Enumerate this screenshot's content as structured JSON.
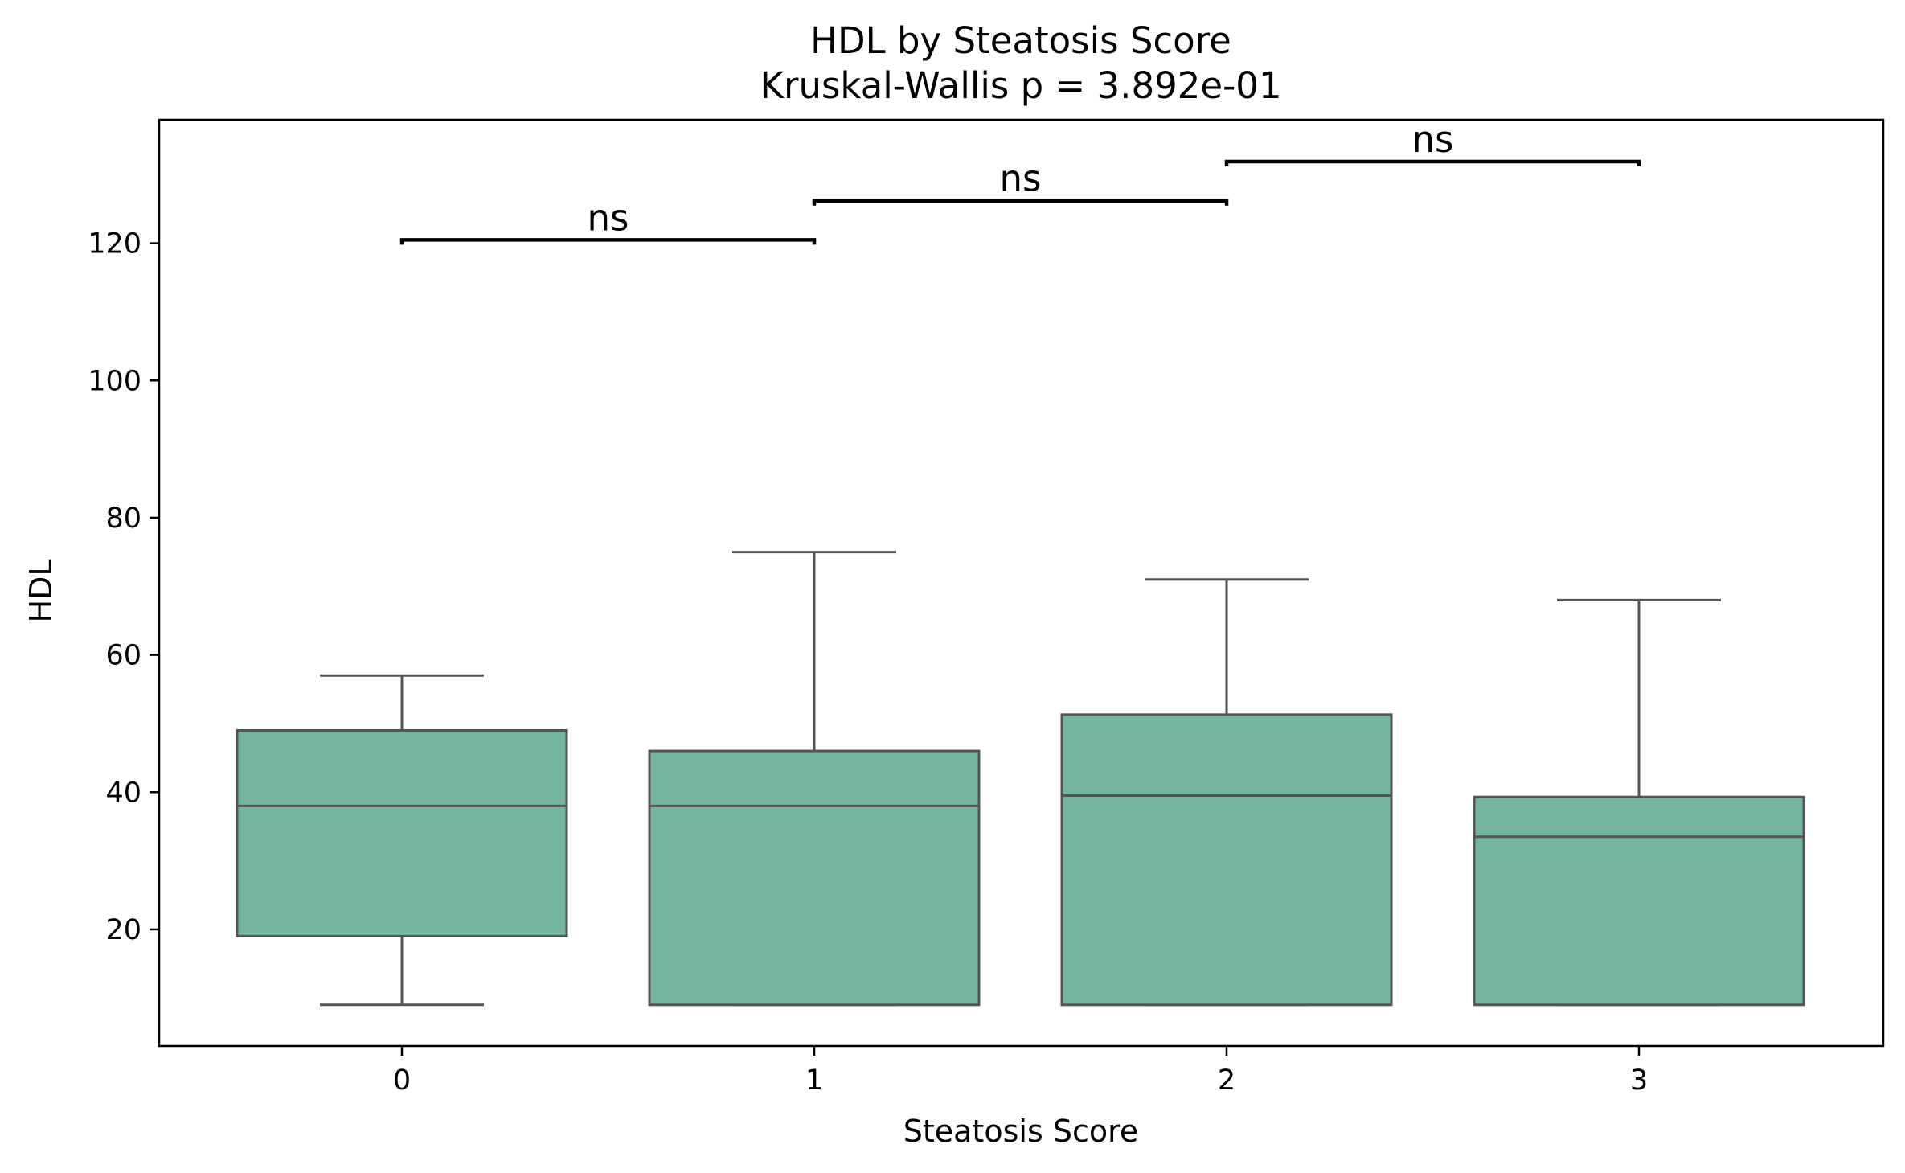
{
  "chart_data": {
    "type": "box",
    "title": "HDL by Steatosis Score",
    "subtitle": "Kruskal-Wallis p = 3.892e-01",
    "xlabel": "Steatosis Score",
    "ylabel": "HDL",
    "categories": [
      "0",
      "1",
      "2",
      "3"
    ],
    "ylim": [
      3,
      138
    ],
    "yticks": [
      20,
      40,
      60,
      80,
      100,
      120
    ],
    "grid": false,
    "box_color": "#74b5a1",
    "line_color": "#555555",
    "boxes": [
      {
        "category": "0",
        "whisker_low": 9,
        "q1": 19,
        "median": 38,
        "q3": 49,
        "whisker_high": 57
      },
      {
        "category": "1",
        "whisker_low": 9,
        "q1": 9,
        "median": 38,
        "q3": 46,
        "whisker_high": 75
      },
      {
        "category": "2",
        "whisker_low": 9,
        "q1": 9,
        "median": 39.5,
        "q3": 51.3,
        "whisker_high": 71
      },
      {
        "category": "3",
        "whisker_low": 9,
        "q1": 9,
        "median": 33.5,
        "q3": 39.3,
        "whisker_high": 68
      }
    ],
    "annotations": [
      {
        "from": "0",
        "to": "1",
        "y": 120.5,
        "label": "ns"
      },
      {
        "from": "1",
        "to": "2",
        "y": 126.2,
        "label": "ns"
      },
      {
        "from": "2",
        "to": "3",
        "y": 131.9,
        "label": "ns"
      }
    ]
  }
}
